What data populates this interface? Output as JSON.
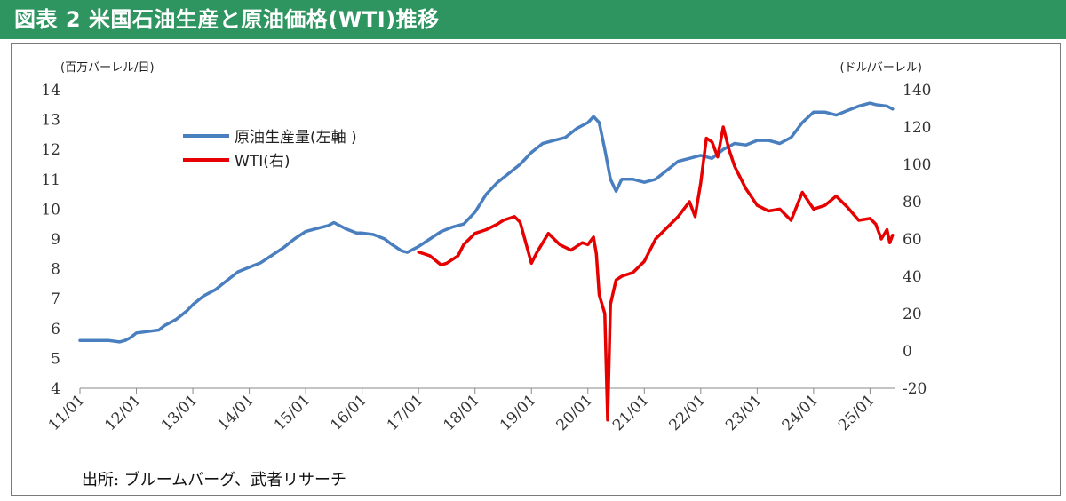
{
  "header": {
    "title": "図表 2 米国石油生産と原油価格(WTI)推移"
  },
  "source": "出所: ブルームバーグ、武者リサーチ",
  "colors": {
    "header_bg": "#2e9460",
    "production": "#4a7fbf",
    "wti": "#e60000"
  },
  "chart_data": {
    "type": "line",
    "left_axis": {
      "unit_label": "(百万バーレル/日)",
      "ticks": [
        4,
        5,
        6,
        7,
        8,
        9,
        10,
        11,
        12,
        13,
        14
      ],
      "range": [
        4,
        14
      ]
    },
    "right_axis": {
      "unit_label": "(ドル/バーレル)",
      "ticks": [
        -20,
        0,
        20,
        40,
        60,
        80,
        100,
        120,
        140
      ],
      "range": [
        -20,
        140
      ]
    },
    "x_categories": [
      "11/01",
      "12/01",
      "13/01",
      "14/01",
      "15/01",
      "16/01",
      "17/01",
      "18/01",
      "19/01",
      "20/01",
      "21/01",
      "22/01",
      "23/01",
      "24/01",
      "25/01"
    ],
    "grid": false,
    "legend": "upper-left",
    "series": [
      {
        "name": "原油生産量(左軸 )",
        "axis": "left",
        "x": [
          2011.0,
          2011.1,
          2011.3,
          2011.5,
          2011.7,
          2011.8,
          2011.9,
          2012.0,
          2012.2,
          2012.4,
          2012.5,
          2012.7,
          2012.8,
          2012.9,
          2013.0,
          2013.2,
          2013.4,
          2013.6,
          2013.8,
          2014.0,
          2014.2,
          2014.4,
          2014.6,
          2014.8,
          2015.0,
          2015.2,
          2015.4,
          2015.5,
          2015.7,
          2015.9,
          2016.0,
          2016.2,
          2016.4,
          2016.5,
          2016.7,
          2016.8,
          2017.0,
          2017.2,
          2017.4,
          2017.6,
          2017.8,
          2018.0,
          2018.2,
          2018.4,
          2018.6,
          2018.8,
          2019.0,
          2019.2,
          2019.4,
          2019.6,
          2019.8,
          2020.0,
          2020.1,
          2020.2,
          2020.3,
          2020.4,
          2020.5,
          2020.6,
          2020.8,
          2021.0,
          2021.2,
          2021.4,
          2021.6,
          2021.8,
          2022.0,
          2022.2,
          2022.4,
          2022.6,
          2022.8,
          2023.0,
          2023.2,
          2023.4,
          2023.6,
          2023.8,
          2024.0,
          2024.2,
          2024.4,
          2024.6,
          2024.8,
          2025.0,
          2025.1,
          2025.3,
          2025.4
        ],
        "values": [
          5.6,
          5.6,
          5.6,
          5.6,
          5.55,
          5.6,
          5.7,
          5.85,
          5.9,
          5.95,
          6.1,
          6.3,
          6.45,
          6.6,
          6.8,
          7.1,
          7.3,
          7.6,
          7.9,
          8.05,
          8.2,
          8.45,
          8.7,
          9.0,
          9.25,
          9.35,
          9.45,
          9.55,
          9.35,
          9.2,
          9.2,
          9.15,
          9.0,
          8.85,
          8.6,
          8.55,
          8.75,
          9.0,
          9.25,
          9.4,
          9.5,
          9.9,
          10.5,
          10.9,
          11.2,
          11.5,
          11.9,
          12.2,
          12.3,
          12.4,
          12.7,
          12.9,
          13.1,
          12.9,
          12.0,
          11.0,
          10.6,
          11.0,
          11.0,
          10.9,
          11.0,
          11.3,
          11.6,
          11.7,
          11.8,
          11.7,
          12.0,
          12.2,
          12.15,
          12.3,
          12.3,
          12.2,
          12.4,
          12.9,
          13.25,
          13.25,
          13.15,
          13.3,
          13.45,
          13.55,
          13.5,
          13.45,
          13.35
        ]
      },
      {
        "name": "WTI(右)",
        "axis": "right",
        "x": [
          2017.0,
          2017.2,
          2017.4,
          2017.5,
          2017.7,
          2017.8,
          2018.0,
          2018.2,
          2018.4,
          2018.5,
          2018.7,
          2018.8,
          2019.0,
          2019.1,
          2019.3,
          2019.5,
          2019.7,
          2019.9,
          2020.0,
          2020.1,
          2020.15,
          2020.2,
          2020.3,
          2020.35,
          2020.4,
          2020.5,
          2020.6,
          2020.8,
          2021.0,
          2021.2,
          2021.4,
          2021.6,
          2021.8,
          2021.9,
          2022.0,
          2022.1,
          2022.2,
          2022.3,
          2022.4,
          2022.5,
          2022.6,
          2022.8,
          2023.0,
          2023.2,
          2023.4,
          2023.6,
          2023.8,
          2024.0,
          2024.2,
          2024.4,
          2024.6,
          2024.8,
          2025.0,
          2025.1,
          2025.2,
          2025.3,
          2025.35,
          2025.4
        ],
        "values": [
          53,
          51,
          46,
          47,
          51,
          57,
          63,
          65,
          68,
          70,
          72,
          69,
          47,
          53,
          63,
          57,
          54,
          58,
          57,
          61,
          52,
          30,
          20,
          -37,
          25,
          38,
          40,
          42,
          48,
          60,
          66,
          72,
          80,
          72,
          90,
          114,
          112,
          104,
          120,
          108,
          99,
          87,
          78,
          75,
          76,
          70,
          85,
          76,
          78,
          83,
          77,
          70,
          71,
          68,
          60,
          65,
          58,
          62
        ]
      }
    ]
  }
}
